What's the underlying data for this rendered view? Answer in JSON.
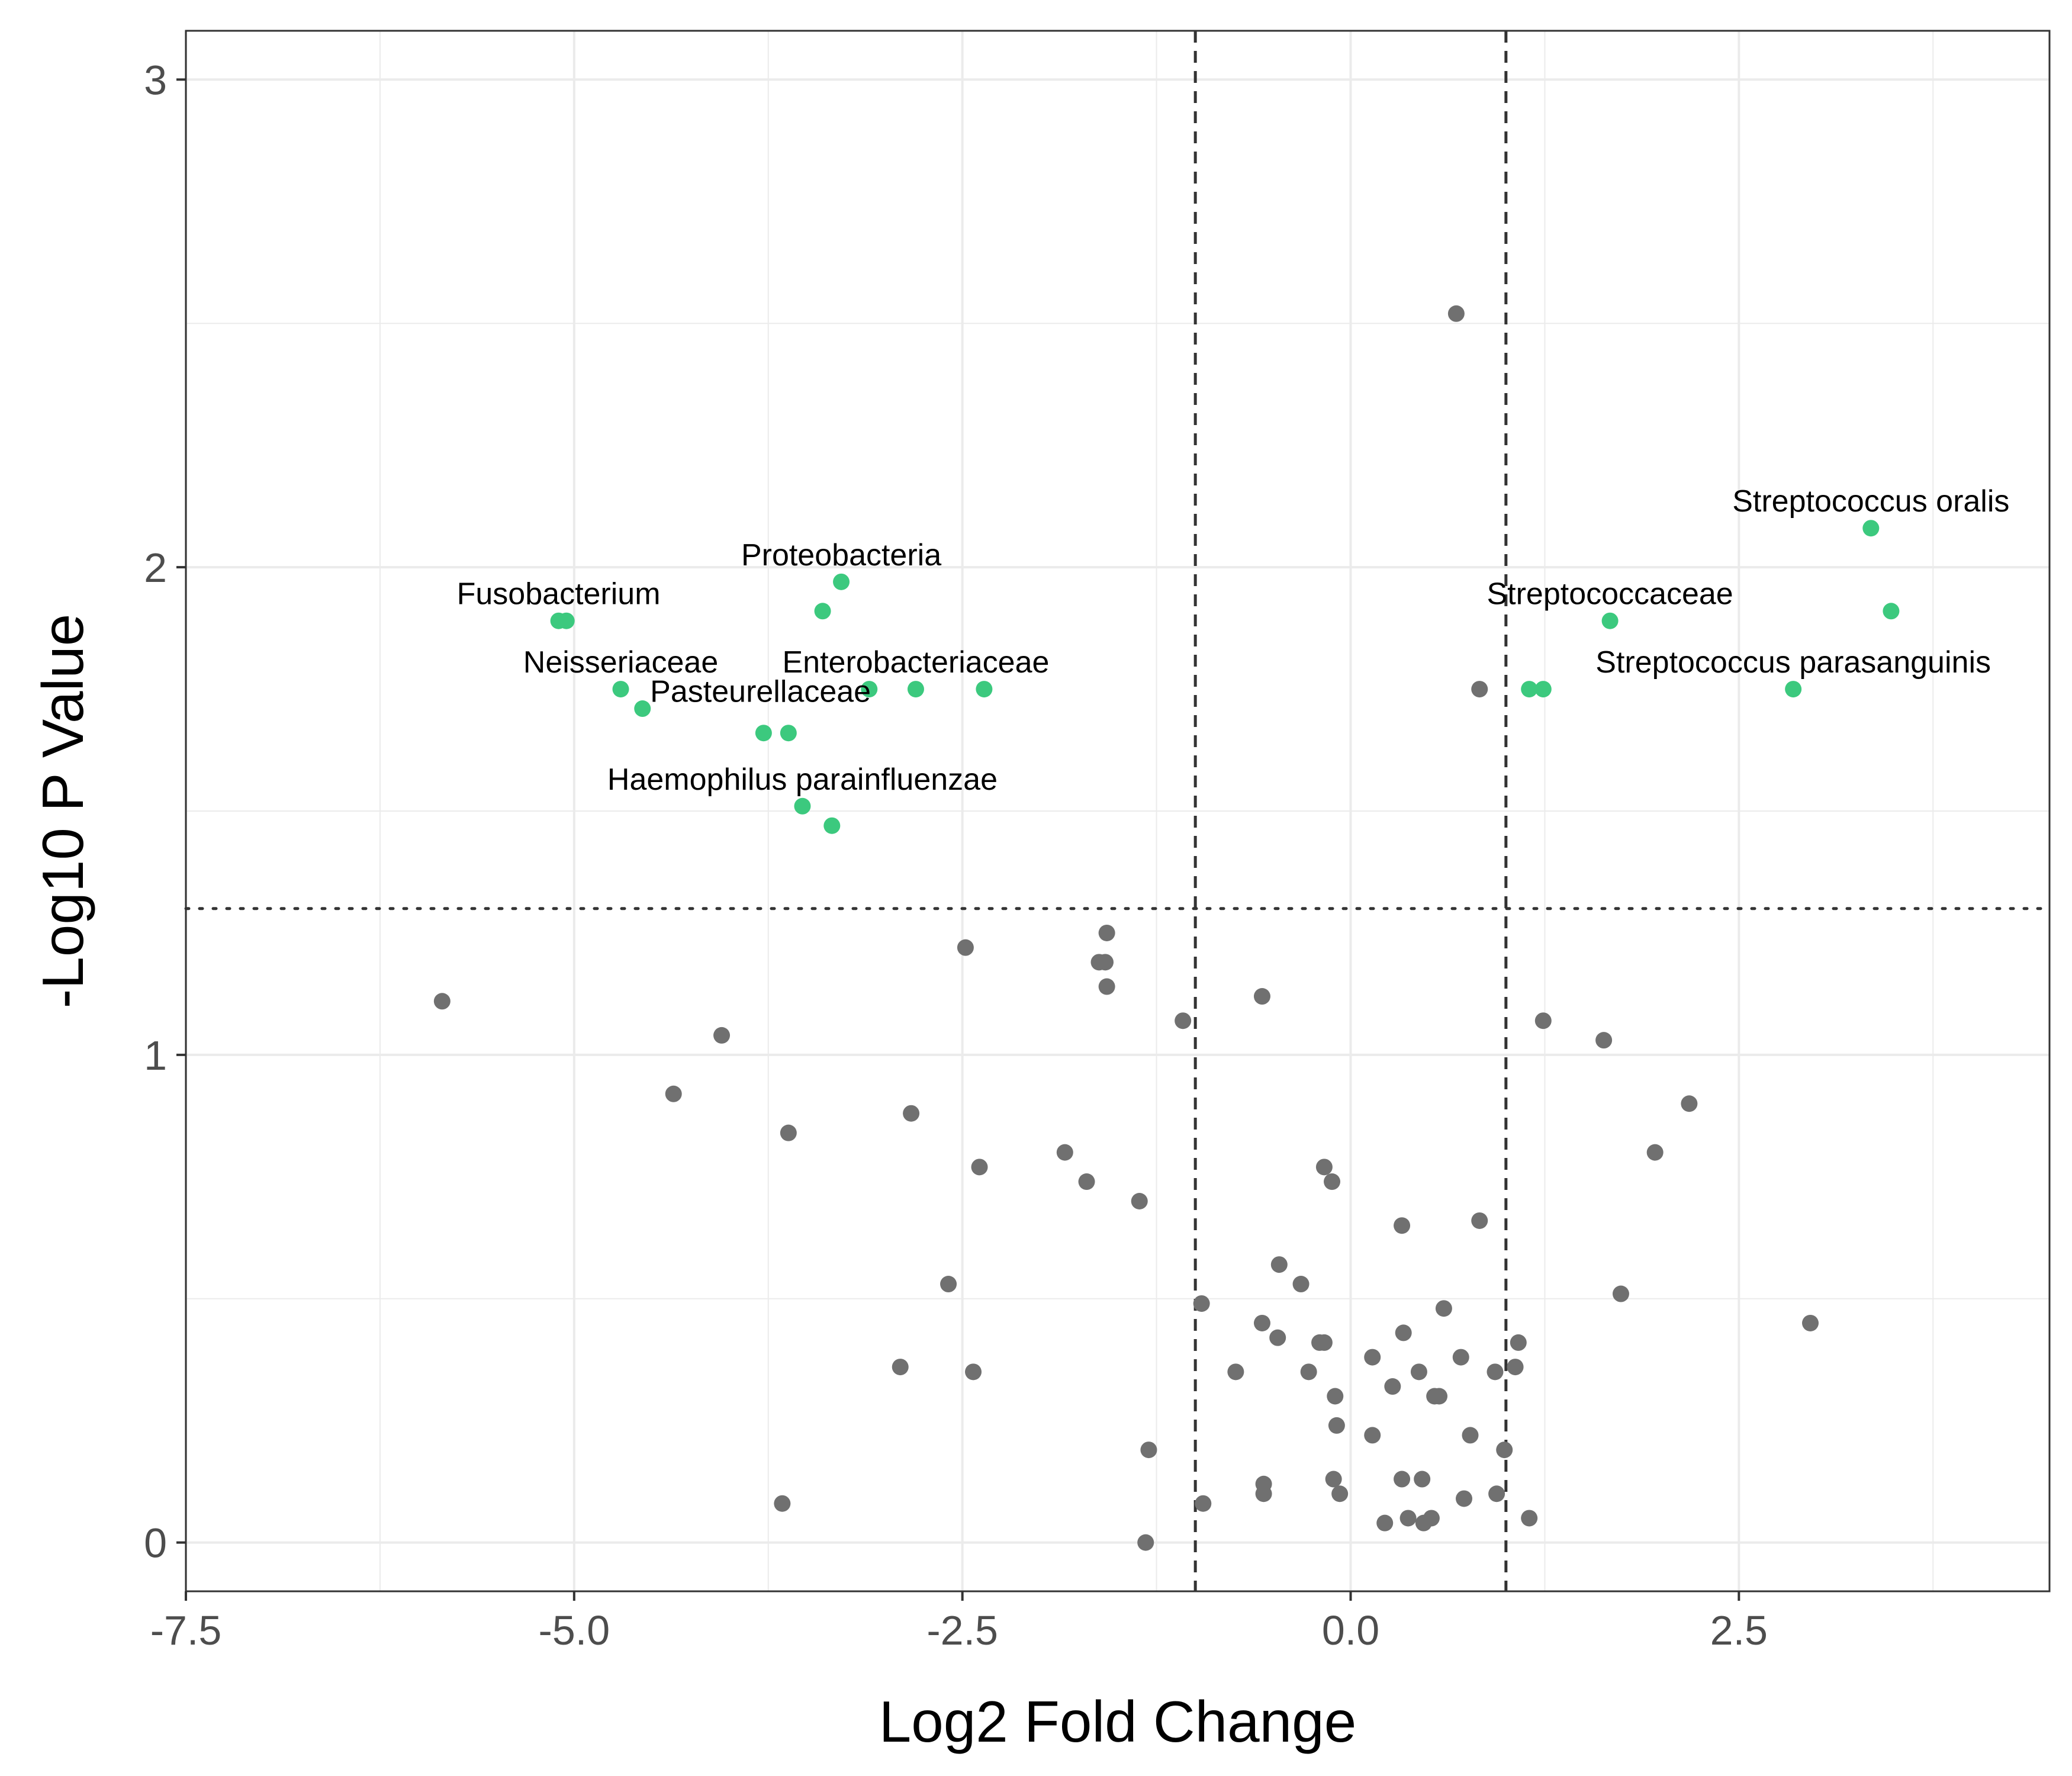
{
  "chart_data": {
    "type": "scatter",
    "title": "",
    "xlabel": "Log2 Fold Change",
    "ylabel": "-Log10 P Value",
    "xlim": [
      -7.5,
      4.5
    ],
    "ylim": [
      -0.1,
      3.1
    ],
    "x_ticks": [
      -7.5,
      -5.0,
      -2.5,
      0.0,
      2.5
    ],
    "x_tick_labels": [
      "-7.5",
      "-5.0",
      "-2.5",
      "0.0",
      "2.5"
    ],
    "y_ticks": [
      0,
      1,
      2,
      3
    ],
    "y_tick_labels": [
      "0",
      "1",
      "2",
      "3"
    ],
    "grid": true,
    "fold_change_thresholds": [
      -1,
      1
    ],
    "p_value_threshold": 1.3,
    "colors": {
      "significant": "#3cc97e",
      "not_significant": "#707070",
      "grid": "#ebebeb",
      "panel_border": "#333333",
      "threshold_line": "#333333",
      "axis_text": "#4d4d4d"
    },
    "series": [
      {
        "color": "#3cc97e",
        "points": [
          {
            "x": -5.05,
            "y": 1.89
          },
          {
            "x": -5.1,
            "y": 1.89
          },
          {
            "x": -3.28,
            "y": 1.97
          },
          {
            "x": -3.4,
            "y": 1.91
          },
          {
            "x": -4.7,
            "y": 1.75
          },
          {
            "x": -4.56,
            "y": 1.71
          },
          {
            "x": -3.1,
            "y": 1.75
          },
          {
            "x": -2.8,
            "y": 1.75
          },
          {
            "x": -2.36,
            "y": 1.75
          },
          {
            "x": -3.78,
            "y": 1.66
          },
          {
            "x": -3.62,
            "y": 1.66
          },
          {
            "x": -3.53,
            "y": 1.51
          },
          {
            "x": -3.34,
            "y": 1.47
          },
          {
            "x": 3.35,
            "y": 2.08
          },
          {
            "x": 3.48,
            "y": 1.91
          },
          {
            "x": 1.67,
            "y": 1.89
          },
          {
            "x": 1.15,
            "y": 1.75
          },
          {
            "x": 1.24,
            "y": 1.75
          },
          {
            "x": 2.85,
            "y": 1.75
          }
        ]
      },
      {
        "color": "#707070",
        "points": [
          {
            "x": 0.68,
            "y": 2.52
          },
          {
            "x": 0.83,
            "y": 1.75
          },
          {
            "x": -1.57,
            "y": 1.25
          },
          {
            "x": -2.48,
            "y": 1.22
          },
          {
            "x": -1.62,
            "y": 1.19
          },
          {
            "x": -1.58,
            "y": 1.19
          },
          {
            "x": -1.57,
            "y": 1.14
          },
          {
            "x": -5.85,
            "y": 1.11
          },
          {
            "x": -0.57,
            "y": 1.12
          },
          {
            "x": -1.08,
            "y": 1.07
          },
          {
            "x": 1.24,
            "y": 1.07
          },
          {
            "x": 1.63,
            "y": 1.03
          },
          {
            "x": -4.05,
            "y": 1.04
          },
          {
            "x": -4.36,
            "y": 0.92
          },
          {
            "x": 2.18,
            "y": 0.9
          },
          {
            "x": -2.83,
            "y": 0.88
          },
          {
            "x": -3.62,
            "y": 0.84
          },
          {
            "x": -1.84,
            "y": 0.8
          },
          {
            "x": 1.96,
            "y": 0.8
          },
          {
            "x": -0.17,
            "y": 0.77
          },
          {
            "x": -2.39,
            "y": 0.77
          },
          {
            "x": -1.7,
            "y": 0.74
          },
          {
            "x": -0.12,
            "y": 0.74
          },
          {
            "x": -1.36,
            "y": 0.7
          },
          {
            "x": 0.33,
            "y": 0.65
          },
          {
            "x": 0.83,
            "y": 0.66
          },
          {
            "x": -0.46,
            "y": 0.57
          },
          {
            "x": -0.32,
            "y": 0.53
          },
          {
            "x": -2.59,
            "y": 0.53
          },
          {
            "x": 1.74,
            "y": 0.51
          },
          {
            "x": -0.96,
            "y": 0.49
          },
          {
            "x": 0.6,
            "y": 0.48
          },
          {
            "x": -0.57,
            "y": 0.45
          },
          {
            "x": 2.96,
            "y": 0.45
          },
          {
            "x": -0.47,
            "y": 0.42
          },
          {
            "x": 0.34,
            "y": 0.43
          },
          {
            "x": -0.2,
            "y": 0.41
          },
          {
            "x": -0.17,
            "y": 0.41
          },
          {
            "x": 1.08,
            "y": 0.41
          },
          {
            "x": 0.14,
            "y": 0.38
          },
          {
            "x": 0.71,
            "y": 0.38
          },
          {
            "x": -0.74,
            "y": 0.35
          },
          {
            "x": -0.27,
            "y": 0.35
          },
          {
            "x": 0.44,
            "y": 0.35
          },
          {
            "x": 0.93,
            "y": 0.35
          },
          {
            "x": 1.06,
            "y": 0.36
          },
          {
            "x": -2.9,
            "y": 0.36
          },
          {
            "x": -2.43,
            "y": 0.35
          },
          {
            "x": 0.27,
            "y": 0.32
          },
          {
            "x": -0.1,
            "y": 0.3
          },
          {
            "x": 0.54,
            "y": 0.3
          },
          {
            "x": 0.57,
            "y": 0.3
          },
          {
            "x": -0.09,
            "y": 0.24
          },
          {
            "x": 0.14,
            "y": 0.22
          },
          {
            "x": 0.77,
            "y": 0.22
          },
          {
            "x": -1.3,
            "y": 0.19
          },
          {
            "x": 0.99,
            "y": 0.19
          },
          {
            "x": -3.66,
            "y": 0.08
          },
          {
            "x": -0.95,
            "y": 0.08
          },
          {
            "x": -0.56,
            "y": 0.12
          },
          {
            "x": -0.56,
            "y": 0.1
          },
          {
            "x": -0.11,
            "y": 0.13
          },
          {
            "x": -0.07,
            "y": 0.1
          },
          {
            "x": 0.33,
            "y": 0.13
          },
          {
            "x": 0.46,
            "y": 0.13
          },
          {
            "x": 0.73,
            "y": 0.09
          },
          {
            "x": 0.94,
            "y": 0.1
          },
          {
            "x": 0.22,
            "y": 0.04
          },
          {
            "x": 0.37,
            "y": 0.05
          },
          {
            "x": 0.47,
            "y": 0.04
          },
          {
            "x": 0.52,
            "y": 0.05
          },
          {
            "x": 1.15,
            "y": 0.05
          },
          {
            "x": -1.32,
            "y": 0.0
          }
        ]
      }
    ],
    "annotations": [
      {
        "text": "Fusobacterium",
        "x": -5.1,
        "y": 1.89
      },
      {
        "text": "Proteobacteria",
        "x": -3.28,
        "y": 1.97
      },
      {
        "text": "Neisseriaceae",
        "x": -4.7,
        "y": 1.75
      },
      {
        "text": "Enterobacteriaceae",
        "x": -2.8,
        "y": 1.75
      },
      {
        "text": "Pasteurellaceae",
        "x": -3.8,
        "y": 1.69
      },
      {
        "text": "Haemophilus parainfluenzae",
        "x": -3.53,
        "y": 1.51
      },
      {
        "text": "Streptococcus oralis",
        "x": 3.35,
        "y": 2.08
      },
      {
        "text": "Streptococcaceae",
        "x": 1.67,
        "y": 1.89
      },
      {
        "text": "Streptococcus parasanguinis",
        "x": 2.85,
        "y": 1.75
      }
    ]
  }
}
